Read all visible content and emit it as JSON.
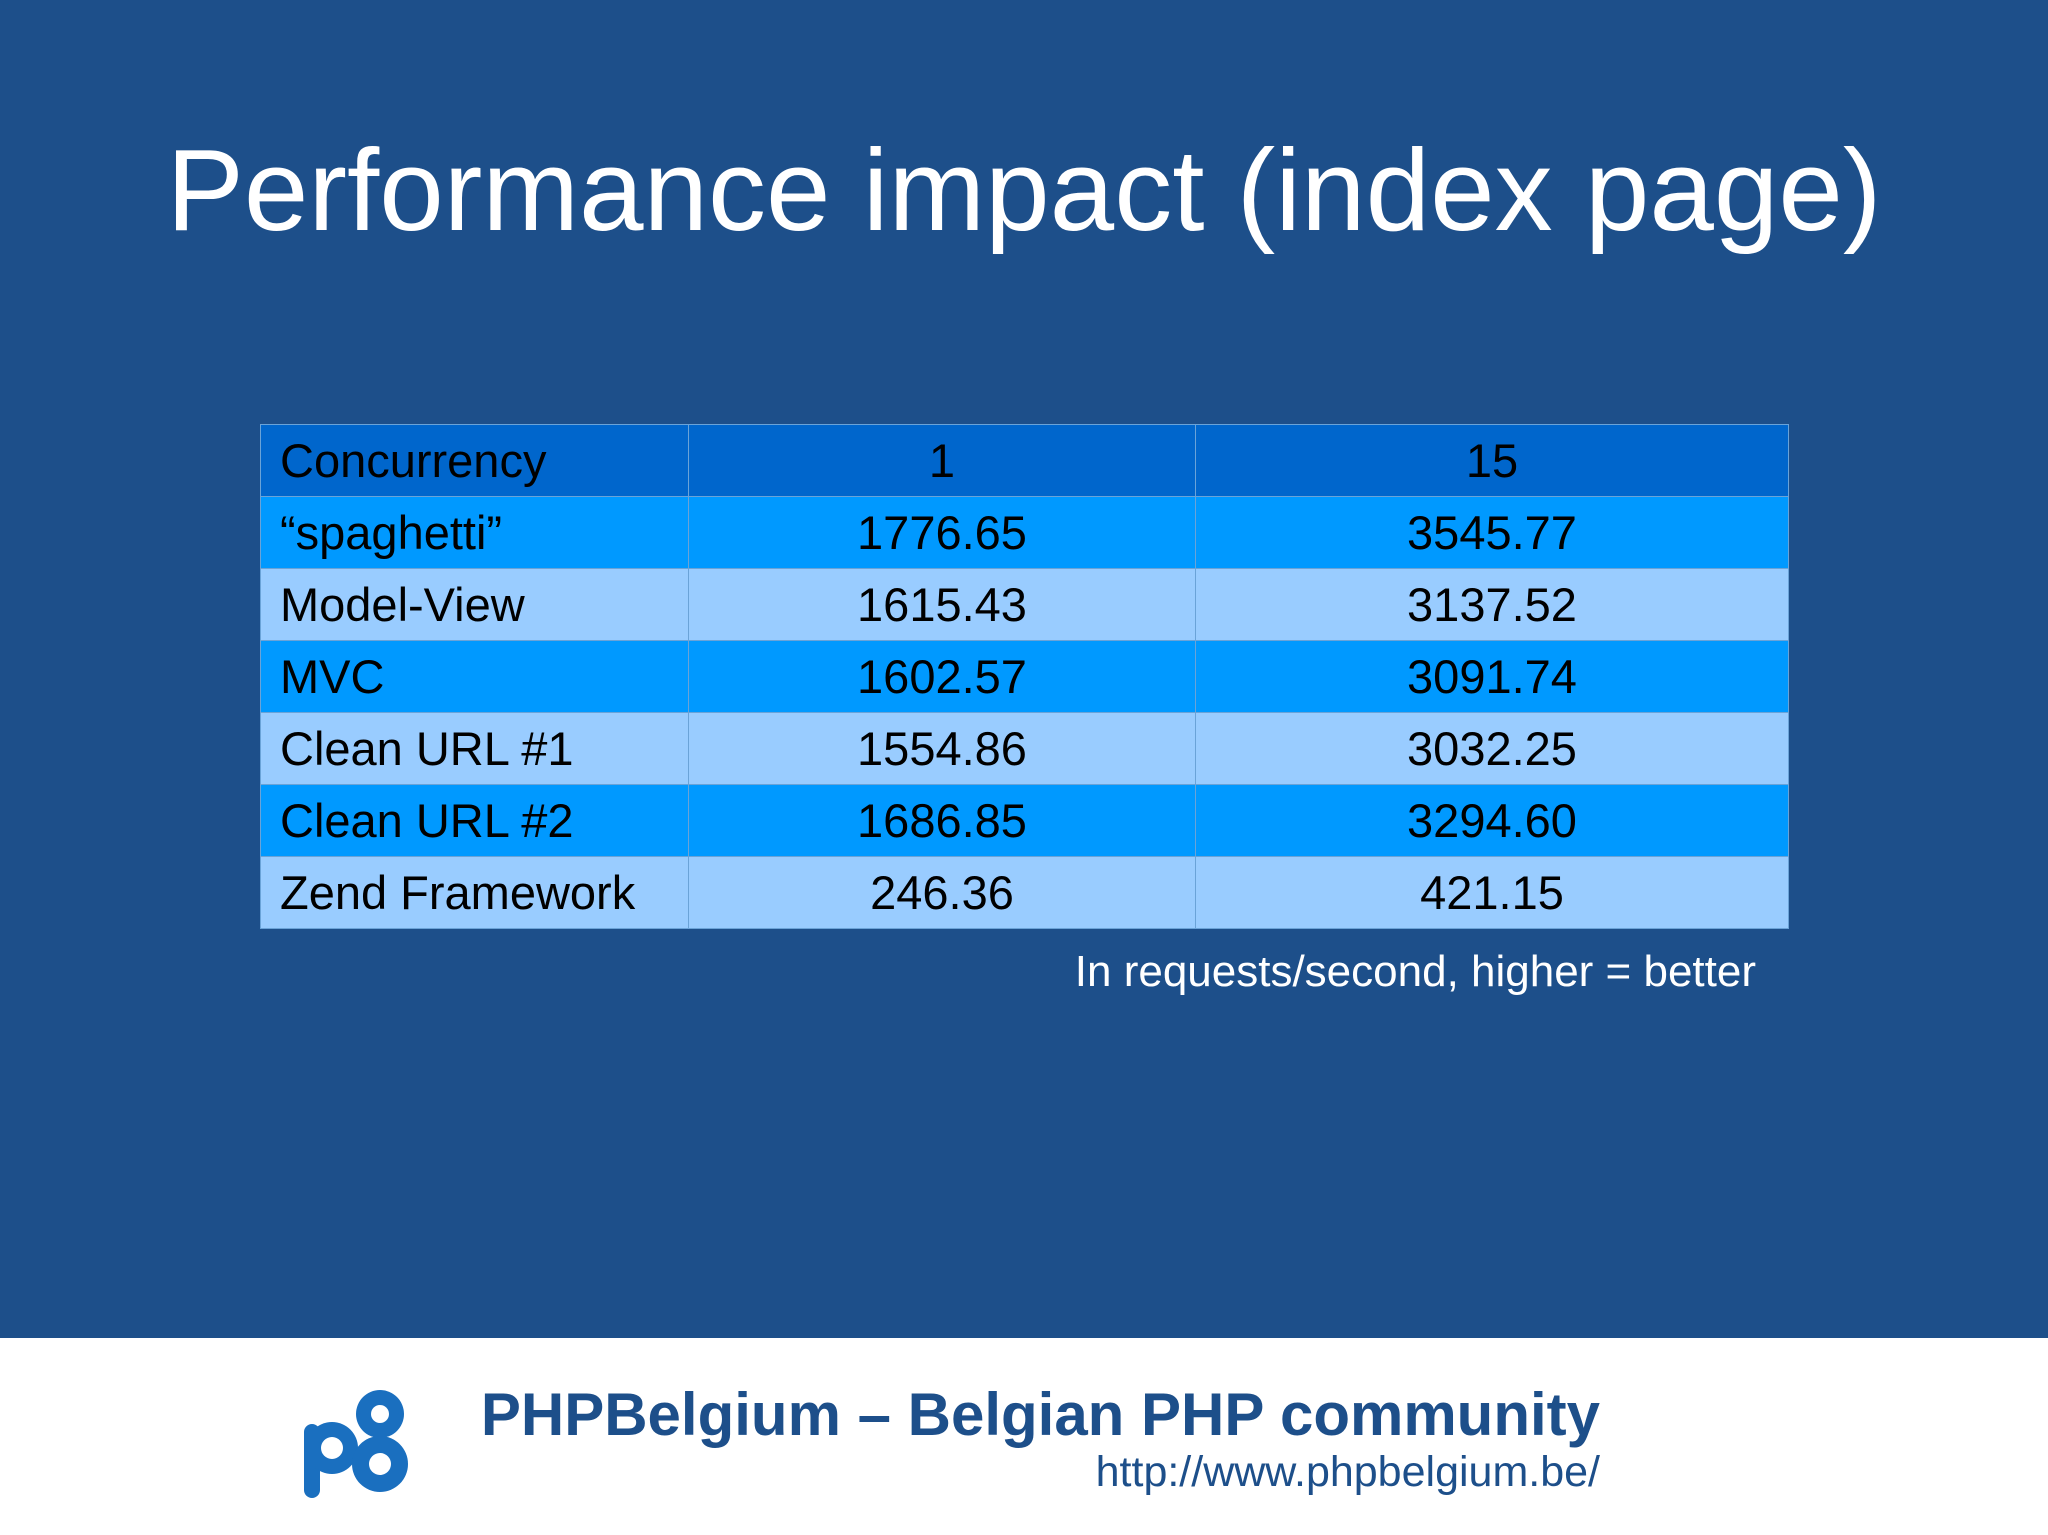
{
  "slide": {
    "title": "Performance impact (index page)",
    "note": "In requests/second, higher = better"
  },
  "table": {
    "header": [
      "Concurrency",
      "1",
      "15"
    ],
    "rows": [
      [
        "“spaghetti”",
        "1776.65",
        "3545.77"
      ],
      [
        "Model-View",
        "1615.43",
        "3137.52"
      ],
      [
        "MVC",
        "1602.57",
        "3091.74"
      ],
      [
        "Clean URL #1",
        "1554.86",
        "3032.25"
      ],
      [
        "Clean URL #2",
        "1686.85",
        "3294.60"
      ],
      [
        "Zend Framework",
        "246.36",
        "421.15"
      ]
    ]
  },
  "footer": {
    "title": "PHPBelgium – Belgian PHP community",
    "url": "http://www.phpbelgium.be/",
    "logo_icon": "phpbelgium-logo-icon"
  },
  "colors": {
    "background": "#1d4f8a",
    "header_row": "#0066cc",
    "dark_row": "#0099ff",
    "light_row": "#99ccff",
    "footer_text": "#1d4f8a"
  }
}
